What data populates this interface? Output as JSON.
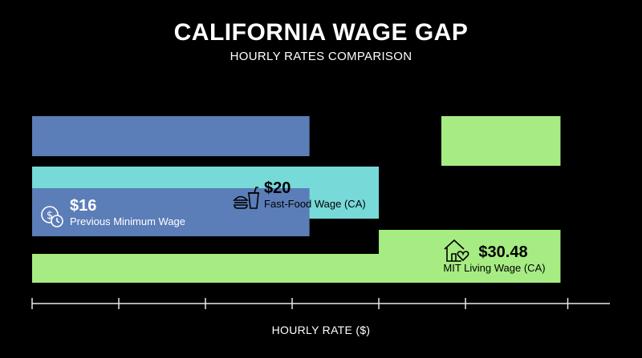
{
  "title": "CALIFORNIA WAGE GAP",
  "subtitle": "HOURLY RATES COMPARISON",
  "chart_data": {
    "type": "bar",
    "orientation": "horizontal",
    "title": "CALIFORNIA WAGE GAP",
    "subtitle": "HOURLY RATES COMPARISON",
    "xlabel": "HOURLY RATE ($)",
    "categories": [
      "Previous Minimum Wage",
      "Fast-Food Wage (CA)",
      "MIT Living Wage (CA)"
    ],
    "values": [
      16,
      20,
      30.48
    ],
    "value_labels": [
      "$16",
      "$20",
      "$30.48"
    ],
    "colors": [
      "#5b7db8",
      "#77d9d8",
      "#a6ec83"
    ],
    "icons": [
      "clock-dollar-icon",
      "fast-food-icon",
      "house-heart-icon"
    ],
    "xlim": [
      0,
      33.33
    ],
    "grid": false,
    "legend": "none"
  }
}
